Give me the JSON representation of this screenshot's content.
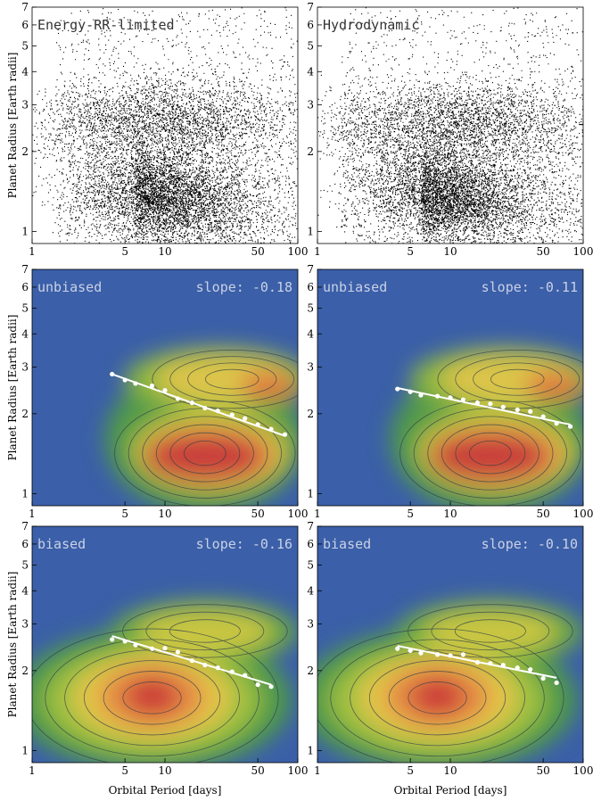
{
  "axes": {
    "xlabel": "Orbital Period [days]",
    "ylabel": "Planet Radius [Earth radii]",
    "xticks": [
      1,
      5,
      10,
      50,
      100
    ],
    "yticks": [
      1,
      2,
      3,
      4,
      5,
      6,
      7
    ],
    "xlim": [
      1,
      100
    ],
    "ylim": [
      0.9,
      7
    ],
    "xscale": "log",
    "yscale": "log"
  },
  "colors": {
    "background": "#3b5fa8",
    "contour": "#2b3b4a",
    "fit": "#ffffff",
    "scatter": "#000000"
  },
  "chart_data": [
    {
      "type": "scatter",
      "panel": "top-left",
      "title": "Energy-RR-limited",
      "xlabel": "",
      "ylabel": "Planet Radius [Earth radii]",
      "note": "dense cloud of simulated planets; two populations near 1.2-1.8 and 2.2-3 Earth radii"
    },
    {
      "type": "scatter",
      "panel": "top-right",
      "title": "Hydrodynamic",
      "xlabel": "",
      "ylabel": ""
    },
    {
      "type": "heatmap",
      "panel": "middle-left",
      "title": "unbiased",
      "slope_label": "slope: -0.18",
      "ylabel": "Planet Radius [Earth radii]",
      "valley_points": {
        "x": [
          4,
          5,
          6,
          8,
          10,
          12.5,
          16,
          20,
          25,
          32,
          40,
          50,
          63,
          80
        ],
        "y": [
          2.82,
          2.68,
          2.6,
          2.55,
          2.45,
          2.28,
          2.2,
          2.1,
          2.05,
          1.98,
          1.92,
          1.82,
          1.75,
          1.67
        ]
      },
      "fit_line": {
        "x": [
          4,
          80
        ],
        "y": [
          2.82,
          1.65
        ]
      }
    },
    {
      "type": "heatmap",
      "panel": "middle-right",
      "title": "unbiased",
      "slope_label": "slope: -0.11",
      "valley_points": {
        "x": [
          4,
          5,
          6,
          8,
          10,
          12.5,
          16,
          20,
          25,
          32,
          40,
          50,
          63,
          80
        ],
        "y": [
          2.48,
          2.42,
          2.35,
          2.33,
          2.3,
          2.26,
          2.2,
          2.18,
          2.12,
          2.07,
          2.04,
          1.95,
          1.84,
          1.79
        ]
      },
      "fit_line": {
        "x": [
          4,
          80
        ],
        "y": [
          2.5,
          1.82
        ]
      }
    },
    {
      "type": "heatmap",
      "panel": "bottom-left",
      "title": "biased",
      "slope_label": "slope: -0.16",
      "xlabel": "Orbital Period [days]",
      "ylabel": "Planet Radius [Earth radii]",
      "valley_points": {
        "x": [
          4,
          5,
          6,
          8,
          10,
          12.5,
          16,
          20,
          25,
          32,
          40,
          50,
          63
        ],
        "y": [
          2.62,
          2.58,
          2.5,
          2.42,
          2.43,
          2.35,
          2.18,
          2.1,
          2.05,
          1.98,
          1.92,
          1.77,
          1.74
        ]
      },
      "fit_line": {
        "x": [
          4,
          63
        ],
        "y": [
          2.7,
          1.77
        ]
      }
    },
    {
      "type": "heatmap",
      "panel": "bottom-right",
      "title": "biased",
      "slope_label": "slope: -0.10",
      "xlabel": "Orbital Period [days]",
      "valley_points": {
        "x": [
          4,
          5,
          6,
          8,
          10,
          12.5,
          16,
          20,
          25,
          32,
          40,
          50,
          63
        ],
        "y": [
          2.42,
          2.38,
          2.33,
          2.3,
          2.28,
          2.3,
          2.15,
          2.13,
          2.1,
          2.05,
          2.02,
          1.87,
          1.8
        ]
      },
      "fit_line": {
        "x": [
          4,
          63
        ],
        "y": [
          2.48,
          1.88
        ]
      }
    }
  ]
}
